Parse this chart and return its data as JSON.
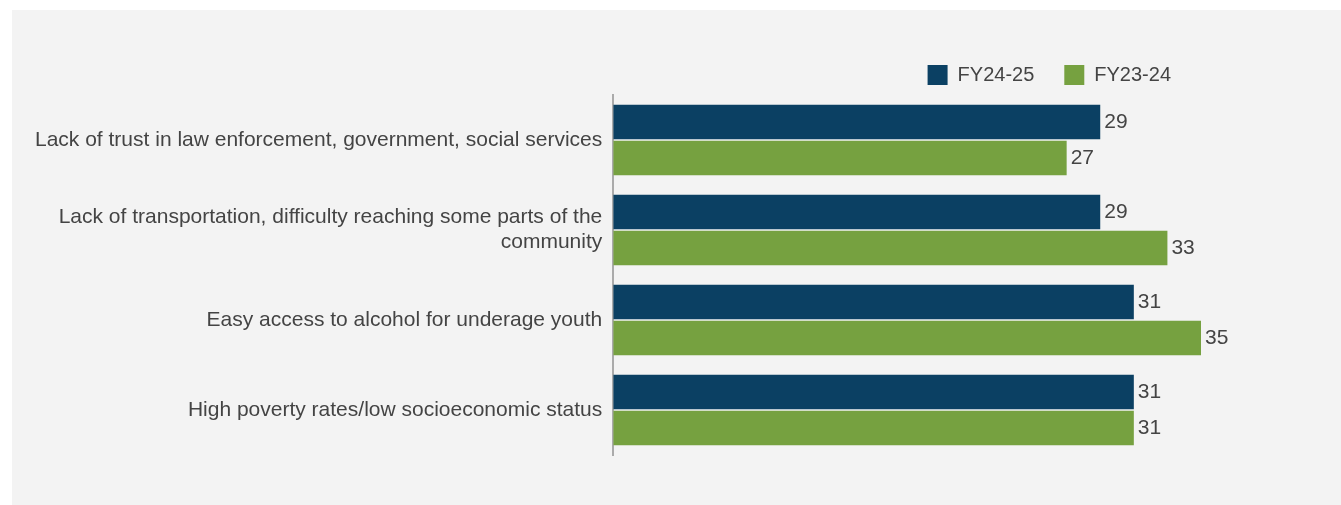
{
  "chart_data": {
    "type": "bar",
    "orientation": "horizontal",
    "categories": [
      "Lack of trust in law enforcement, government, social services",
      "Lack of transportation, difficulty reaching some parts of the community",
      "Easy access to alcohol for underage youth",
      "High poverty rates/low socioeconomic status"
    ],
    "series": [
      {
        "name": "FY24-25",
        "color": "#0b4063",
        "values": [
          29,
          29,
          31,
          31
        ]
      },
      {
        "name": "FY23-24",
        "color": "#76a140",
        "values": [
          27,
          33,
          35,
          31
        ]
      }
    ],
    "tick_labels": "y",
    "data_labels": true,
    "legend": "top right"
  }
}
